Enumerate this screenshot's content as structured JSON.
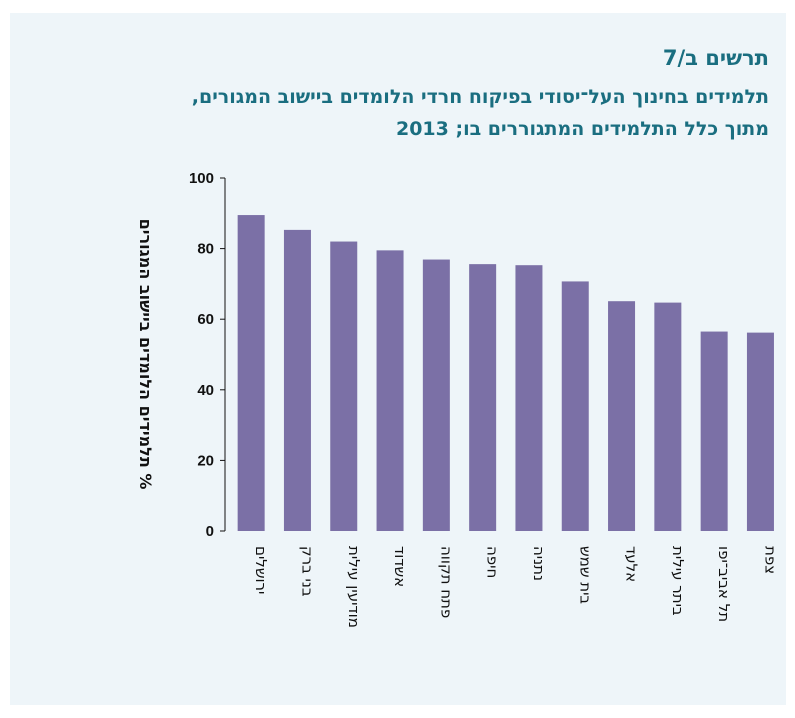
{
  "header": {
    "figure_label": "תרשים ב/7",
    "title_line1": "תלמידים בחינוך העל־יסודי בפיקוח חרדי הלומדים ביישוב המגורים,",
    "title_line2": "מתוך כלל התלמידים המתגוררים בו; 2013"
  },
  "colors": {
    "bar": "#7b70a6",
    "panel": "#eef5f9",
    "title": "#1a6e80"
  },
  "chart_data": {
    "type": "bar",
    "title": "תלמידים בחינוך העל־יסודי בפיקוח חרדי הלומדים ביישוב המגורים, מתוך כלל התלמידים המתגוררים בו; 2013",
    "xlabel": "",
    "ylabel": "% תלמידים הלומדים ביישוב המגורים",
    "ylim": [
      0,
      100
    ],
    "yticks": [
      "0",
      "20",
      "40",
      "60",
      "80",
      "100"
    ],
    "grid": false,
    "categories": [
      "ירושלים",
      "בני ברק",
      "מודיעין עילית",
      "אשדוד",
      "פתח תקווה",
      "חיפה",
      "נתניה",
      "בית שמש",
      "אלעד",
      "ביתר עילית",
      "תל אביב־יפו",
      "צפת"
    ],
    "values": [
      89.5,
      85.3,
      82.0,
      79.5,
      76.9,
      75.6,
      75.3,
      70.7,
      65.1,
      64.7,
      56.5,
      56.2
    ]
  }
}
